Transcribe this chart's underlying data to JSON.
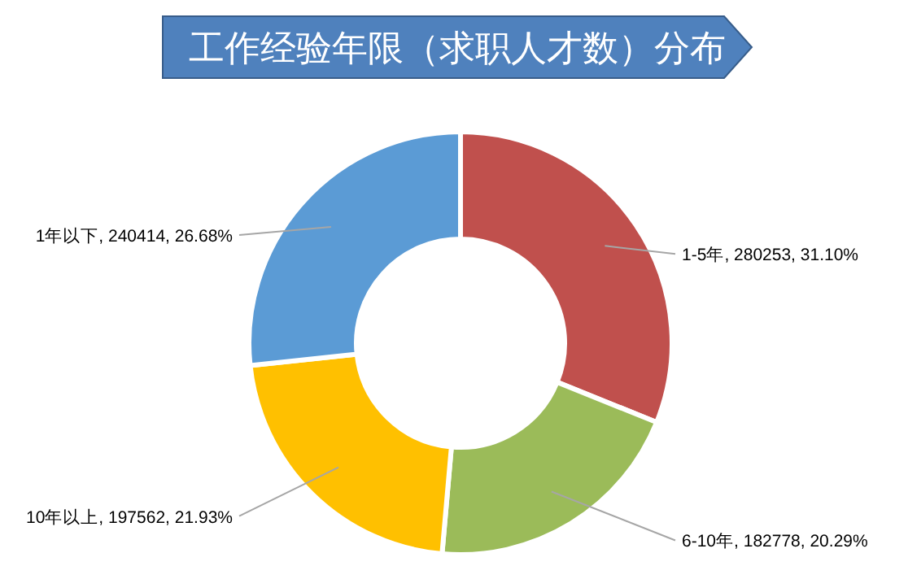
{
  "chart_data": {
    "type": "donut",
    "title": "工作经验年限（求职人才数）分布",
    "categories": [
      "1-5年",
      "6-10年",
      "10年以上",
      "1年以下"
    ],
    "values": [
      280253,
      182778,
      197562,
      240414
    ],
    "colors": [
      "#c0504d",
      "#9bbb59",
      "#ffc000",
      "#5b9bd5"
    ],
    "value_labels": [
      ", 280253, 31.10%",
      ", 182778, 20.29%",
      ", 197562, 21.93%",
      ", 240414, 26.68%"
    ]
  }
}
